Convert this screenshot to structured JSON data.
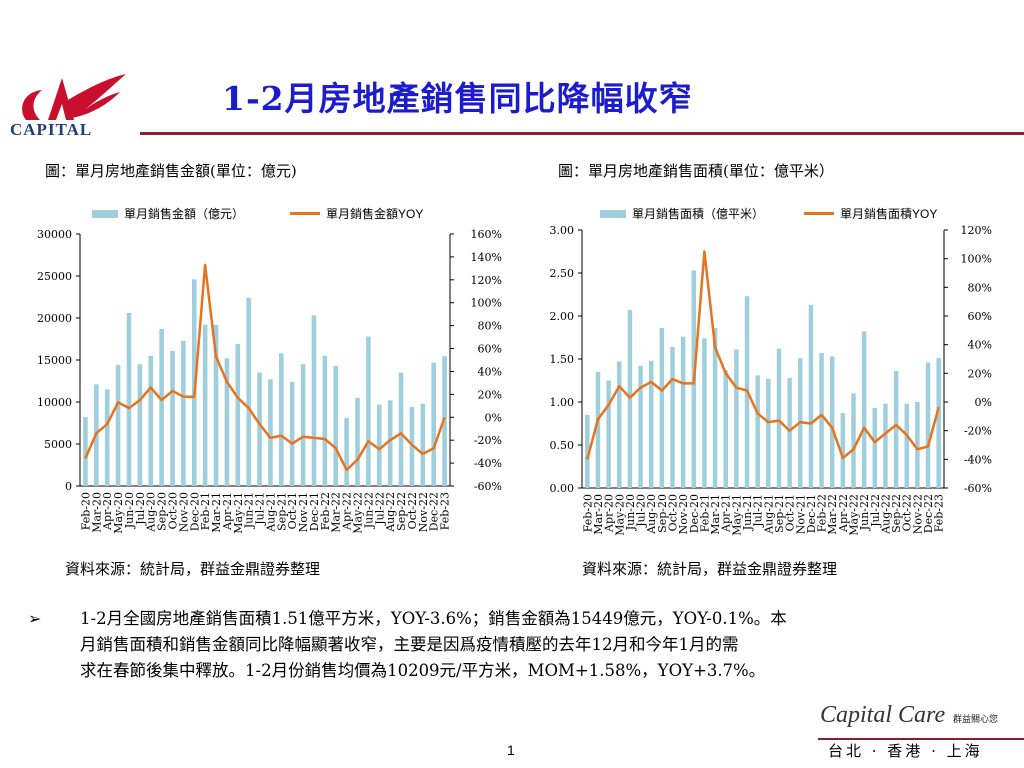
{
  "logo": {
    "text": "CAPITAL",
    "colors": {
      "mark": "#c8102e",
      "text": "#1f3d7a"
    }
  },
  "title": "1-2月房地產銷售同比降幅收窄",
  "left_chart": {
    "caption": "圖：單月房地產銷售金額(單位：億元)",
    "legend_bar": "單月銷售金額（億元）",
    "legend_line": "單月銷售金額YOY",
    "source": "資料來源：統計局，群益金鼎證券整理"
  },
  "right_chart": {
    "caption": "圖：單月房地產銷售面積(單位：億平米）",
    "legend_bar": "單月銷售面積（億平米）",
    "legend_line": "單月銷售面積YOY",
    "source": "資料來源：統計局，群益金鼎證券整理"
  },
  "chart_data": [
    {
      "type": "bar+line",
      "title": "圖：單月房地產銷售金額(單位：億元)",
      "categories": [
        "Feb-20",
        "Mar-20",
        "Apr-20",
        "May-20",
        "Jun-20",
        "Jul-20",
        "Aug-20",
        "Sep-20",
        "Oct-20",
        "Nov-20",
        "Dec-20",
        "Feb-21",
        "Mar-21",
        "Apr-21",
        "May-21",
        "Jun-21",
        "Jul-21",
        "Aug-21",
        "Sep-21",
        "Oct-21",
        "Nov-21",
        "Dec-21",
        "Feb-22",
        "Mar-22",
        "Apr-22",
        "May-22",
        "Jun-22",
        "Jul-22",
        "Aug-22",
        "Sep-22",
        "Oct-22",
        "Nov-22",
        "Dec-22",
        "Feb-23"
      ],
      "series": [
        {
          "name": "單月銷售金額（億元）",
          "kind": "bar",
          "axis": "left",
          "values": [
            8200,
            12100,
            11500,
            14400,
            20600,
            14500,
            15500,
            18700,
            16100,
            17300,
            24600,
            19200,
            19200,
            15200,
            16900,
            22400,
            13500,
            12700,
            15800,
            12400,
            14500,
            20300,
            15500,
            14300,
            8100,
            10500,
            17800,
            9700,
            10200,
            13500,
            9400,
            9800,
            14700,
            15449
          ]
        },
        {
          "name": "單月銷售金額YOY",
          "kind": "line",
          "axis": "right",
          "values": [
            -36,
            -14,
            -6,
            13,
            8,
            15,
            26,
            15,
            23,
            18,
            18,
            133,
            53,
            31,
            17,
            8,
            -6,
            -18,
            -16,
            -23,
            -17,
            -18,
            -19,
            -27,
            -46,
            -37,
            -21,
            -28,
            -20,
            -14,
            -24,
            -32,
            -27,
            -0.1
          ]
        }
      ],
      "y_left": {
        "min": 0,
        "max": 30000,
        "ticks": [
          "0",
          "5000",
          "10000",
          "15000",
          "20000",
          "25000",
          "30000"
        ]
      },
      "y_right": {
        "min": -60,
        "max": 160,
        "ticks": [
          "-60%",
          "-40%",
          "-20%",
          "0%",
          "20%",
          "40%",
          "60%",
          "80%",
          "100%",
          "120%",
          "140%",
          "160%"
        ]
      },
      "colors": {
        "bar": "#9fcfdc",
        "line": "#e8731c"
      }
    },
    {
      "type": "bar+line",
      "title": "圖：單月房地產銷售面積(單位：億平米）",
      "categories": [
        "Feb-20",
        "Mar-20",
        "Apr-20",
        "May-20",
        "Jun-20",
        "Jul-20",
        "Aug-20",
        "Sep-20",
        "Oct-20",
        "Nov-20",
        "Dec-20",
        "Feb-21",
        "Mar-21",
        "Apr-21",
        "May-21",
        "Jun-21",
        "Jul-21",
        "Aug-21",
        "Sep-21",
        "Oct-21",
        "Nov-21",
        "Dec-21",
        "Feb-22",
        "Mar-22",
        "Apr-22",
        "May-22",
        "Jun-22",
        "Jul-22",
        "Aug-22",
        "Sep-22",
        "Oct-22",
        "Nov-22",
        "Dec-22",
        "Feb-23"
      ],
      "series": [
        {
          "name": "單月銷售面積（億平米）",
          "kind": "bar",
          "axis": "left",
          "values": [
            0.85,
            1.35,
            1.25,
            1.47,
            2.07,
            1.42,
            1.48,
            1.86,
            1.64,
            1.76,
            2.53,
            1.74,
            1.86,
            1.37,
            1.61,
            2.23,
            1.31,
            1.27,
            1.62,
            1.28,
            1.51,
            2.13,
            1.57,
            1.53,
            0.87,
            1.1,
            1.82,
            0.93,
            0.98,
            1.36,
            0.98,
            1.0,
            1.46,
            1.51
          ]
        },
        {
          "name": "單月銷售面積YOY",
          "kind": "line",
          "axis": "right",
          "values": [
            -40,
            -12,
            -2,
            11,
            3,
            10,
            14,
            8,
            16,
            13,
            13,
            105,
            38,
            20,
            10,
            8,
            -8,
            -14,
            -13,
            -20,
            -14,
            -15,
            -9,
            -18,
            -39,
            -33,
            -18,
            -28,
            -22,
            -16,
            -23,
            -33,
            -31,
            -3.6
          ]
        }
      ],
      "y_left": {
        "min": 0,
        "max": 3.0,
        "ticks": [
          "0.00",
          "0.50",
          "1.00",
          "1.50",
          "2.00",
          "2.50",
          "3.00"
        ]
      },
      "y_right": {
        "min": -60,
        "max": 120,
        "ticks": [
          "-60%",
          "-40%",
          "-20%",
          "0%",
          "20%",
          "40%",
          "60%",
          "80%",
          "100%",
          "120%"
        ]
      },
      "colors": {
        "bar": "#9fcfdc",
        "line": "#e8731c"
      }
    }
  ],
  "bullet": {
    "symbol": "➢",
    "lines": [
      "1-2月全國房地產銷售面積1.51億平方米，YOY-3.6%；銷售金額為15449億元，YOY-0.1%。本",
      "月銷售面積和銷售金額同比降幅顯著收窄，主要是因爲疫情積壓的去年12月和今年1月的需",
      "求在春節後集中釋放。1-2月份銷售均價為10209元/平方米，MOM+1.58%，YOY+3.7%。"
    ]
  },
  "footer": {
    "brand": "Capital Care",
    "brand_sub": "群益關心您",
    "cities": "台北 · 香港 · 上海",
    "page_number": "1"
  },
  "theme": {
    "title_color": "#1b1bd0",
    "rule_color": "#8c1d2b"
  }
}
